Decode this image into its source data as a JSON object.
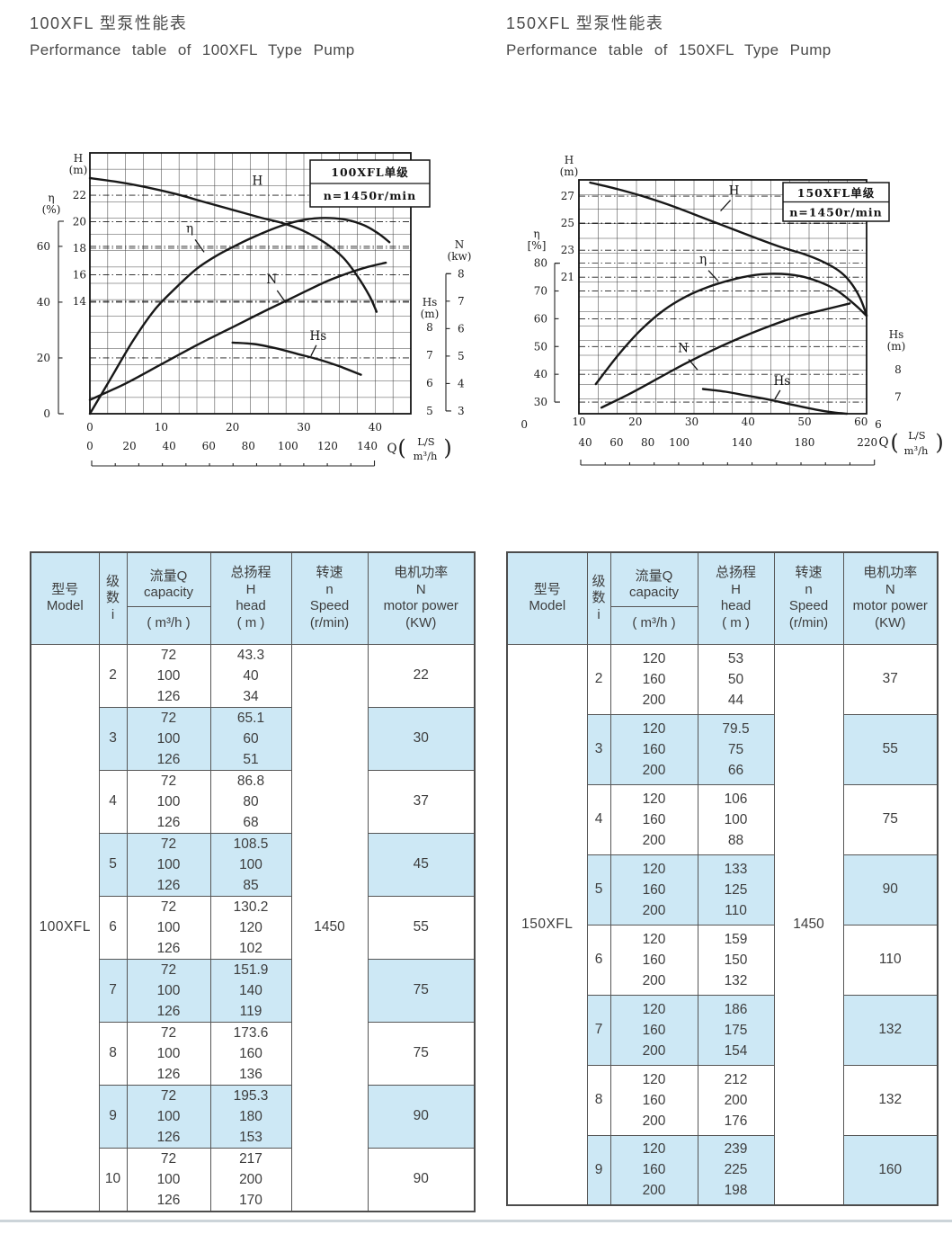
{
  "titles": {
    "left_zh": "100XFL 型泵性能表",
    "left_en": "Performance table of 100XFL Type Pump",
    "right_zh": "150XFL 型泵性能表",
    "right_en": "Performance table of 150XFL Type Pump"
  },
  "colors": {
    "stripe": "#cde8f5",
    "border": "#565656",
    "ink": "#181818",
    "text": "#3d3d3d"
  },
  "chart_data": [
    {
      "id": "100XFL",
      "type": "line",
      "box": [
        "100XFL单级",
        "n=1450r/min"
      ],
      "x": {
        "q_label": "Q",
        "unit_primary": "L/S",
        "unit_secondary": "m³/h",
        "ticks_ls": [
          0,
          10,
          20,
          30,
          40
        ],
        "ticks_m3h": [
          0,
          20,
          40,
          60,
          80,
          100,
          120,
          140
        ],
        "range_ls": [
          0,
          45
        ]
      },
      "axes": {
        "H": {
          "title": [
            "H",
            "(m)"
          ],
          "ticks": [
            22,
            20,
            18,
            16,
            14
          ],
          "range": [
            5.5,
            25.2
          ]
        },
        "eta": {
          "title": [
            "η",
            "(%)"
          ],
          "ticks": [
            60,
            40,
            20,
            0
          ],
          "range": [
            0,
            93.5
          ],
          "bracket": [
            0,
            69
          ]
        },
        "N": {
          "title": [
            "N",
            "(kw)"
          ],
          "ticks": [
            8,
            7,
            6,
            5,
            4,
            3
          ],
          "range": [
            2.9,
            12.4
          ],
          "bracket": [
            3,
            8
          ]
        },
        "Hs": {
          "title": [
            "Hs",
            "(m)"
          ],
          "ticks": [
            8,
            7,
            6,
            5
          ],
          "range": [
            4.9,
            14.25
          ]
        }
      },
      "series": [
        {
          "name": "H",
          "axis": "H",
          "label_at": [
            23.5,
            22.8
          ],
          "points": [
            [
              0,
              23.3
            ],
            [
              4,
              23.0
            ],
            [
              8,
              22.6
            ],
            [
              12,
              22.1
            ],
            [
              16,
              21.5
            ],
            [
              20,
              20.9
            ],
            [
              24,
              20.3
            ],
            [
              27,
              19.9
            ],
            [
              30,
              19.3
            ],
            [
              33,
              18.4
            ],
            [
              35.5,
              17.3
            ],
            [
              37.5,
              15.9
            ],
            [
              39.2,
              14.4
            ],
            [
              40.2,
              13.2
            ]
          ]
        },
        {
          "name": "η",
          "axis": "eta",
          "label_at": [
            14,
            65
          ],
          "points": [
            [
              0,
              0
            ],
            [
              3,
              13
            ],
            [
              6,
              26
            ],
            [
              9,
              37
            ],
            [
              12,
              45
            ],
            [
              15,
              52
            ],
            [
              18,
              57
            ],
            [
              21,
              61
            ],
            [
              24,
              64.5
            ],
            [
              27,
              67.5
            ],
            [
              30,
              69.5
            ],
            [
              33,
              70.2
            ],
            [
              36,
              69.5
            ],
            [
              38.5,
              67.5
            ],
            [
              40.5,
              64.5
            ],
            [
              42,
              61.5
            ]
          ]
        },
        {
          "name": "N",
          "axis": "N",
          "label_at": [
            25.5,
            7.65
          ],
          "points": [
            [
              0,
              3.4
            ],
            [
              5,
              4.0
            ],
            [
              10,
              4.7
            ],
            [
              15,
              5.4
            ],
            [
              20,
              6.05
            ],
            [
              25,
              6.7
            ],
            [
              29,
              7.2
            ],
            [
              33,
              7.7
            ],
            [
              36,
              8.0
            ],
            [
              39,
              8.25
            ],
            [
              41.5,
              8.4
            ]
          ]
        },
        {
          "name": "Hs",
          "axis": "Hs",
          "label_at": [
            32,
            7.55
          ],
          "points": [
            [
              20,
              7.45
            ],
            [
              23,
              7.4
            ],
            [
              26,
              7.25
            ],
            [
              29,
              7.05
            ],
            [
              32,
              6.85
            ],
            [
              35,
              6.6
            ],
            [
              38,
              6.3
            ]
          ]
        }
      ]
    },
    {
      "id": "150XFL",
      "type": "line",
      "box": [
        "150XFL单级",
        "n=1450r/min"
      ],
      "x": {
        "q_label": "Q",
        "unit_primary": "L/S",
        "unit_secondary": "m³/h",
        "ticks_ls": [
          10,
          20,
          30,
          40,
          50,
          60
        ],
        "ticks_m3h": [
          40,
          60,
          80,
          100,
          140,
          180,
          220
        ],
        "range_ls": [
          10,
          61
        ]
      },
      "axes": {
        "H": {
          "title": [
            "H",
            "(m)"
          ],
          "ticks": [
            27,
            25,
            23,
            21
          ],
          "range": [
            10.9,
            28.2
          ]
        },
        "eta": {
          "title": [
            "η",
            "[%]"
          ],
          "ticks": [
            80,
            70,
            60,
            50,
            40,
            30,
            0
          ],
          "range": [
            25.8,
            110
          ],
          "bracket": [
            30,
            80
          ]
        },
        "Hs": {
          "title": [
            "Hs",
            "(m)"
          ],
          "ticks": [
            8,
            7,
            6
          ],
          "range": [
            6.4,
            14.9
          ]
        }
      },
      "series": [
        {
          "name": "H",
          "axis": "H",
          "label_at": [
            37.5,
            27.1
          ],
          "points": [
            [
              12,
              28.0
            ],
            [
              17,
              27.5
            ],
            [
              22,
              26.9
            ],
            [
              27,
              26.2
            ],
            [
              32,
              25.4
            ],
            [
              37,
              24.6
            ],
            [
              42,
              23.8
            ],
            [
              46,
              23.2
            ],
            [
              50,
              22.7
            ],
            [
              53,
              22.2
            ],
            [
              56,
              21.5
            ],
            [
              58,
              20.7
            ],
            [
              59.8,
              19.5
            ],
            [
              61,
              18.2
            ]
          ]
        },
        {
          "name": "η",
          "axis": "eta",
          "label_at": [
            32,
            80
          ],
          "points": [
            [
              13,
              36.5
            ],
            [
              17,
              47
            ],
            [
              21,
              56
            ],
            [
              25,
              63
            ],
            [
              29,
              68
            ],
            [
              33,
              71.5
            ],
            [
              37,
              74
            ],
            [
              41,
              75.7
            ],
            [
              44,
              76.2
            ],
            [
              47,
              76
            ],
            [
              50,
              75
            ],
            [
              53,
              73
            ],
            [
              55.5,
              70.5
            ],
            [
              57.5,
              67.5
            ],
            [
              59.5,
              64
            ],
            [
              61,
              61
            ]
          ]
        },
        {
          "name": "N",
          "axis": "eta",
          "note": "N axis unlabeled in source chart",
          "label_at": [
            28.5,
            48
          ],
          "points": [
            [
              14,
              28
            ],
            [
              19,
              33
            ],
            [
              24,
              38.5
            ],
            [
              29,
              44
            ],
            [
              34,
              49
            ],
            [
              39,
              53.5
            ],
            [
              44,
              57.5
            ],
            [
              49,
              61
            ],
            [
              53,
              63
            ],
            [
              56,
              64.5
            ],
            [
              58,
              65.5
            ]
          ]
        },
        {
          "name": "Hs",
          "axis": "Hs",
          "label_at": [
            46,
            7.45
          ],
          "points": [
            [
              32,
              7.3
            ],
            [
              36,
              7.2
            ],
            [
              40,
              7.05
            ],
            [
              44,
              6.9
            ],
            [
              48,
              6.72
            ],
            [
              52,
              6.55
            ],
            [
              55,
              6.45
            ],
            [
              57.5,
              6.4
            ]
          ]
        }
      ]
    }
  ],
  "tables": [
    {
      "model": "100XFL",
      "speed": "1450",
      "headers": [
        {
          "lines": [
            "型号",
            "Model"
          ]
        },
        {
          "lines": [
            "级",
            "数",
            "i"
          ]
        },
        {
          "split": {
            "top": [
              "流量Q",
              "capacity"
            ],
            "bottom": "( m³/h )"
          }
        },
        {
          "lines": [
            "总扬程",
            "H",
            "head",
            "( m )"
          ]
        },
        {
          "lines": [
            "转速",
            "n",
            "Speed",
            "(r/min)"
          ]
        },
        {
          "lines": [
            "电机功率",
            "N",
            "motor power",
            "(KW)"
          ]
        }
      ],
      "rows": [
        {
          "i": "2",
          "q": [
            "72",
            "100",
            "126"
          ],
          "h": [
            "43.3",
            "40",
            "34"
          ],
          "n": "22"
        },
        {
          "i": "3",
          "q": [
            "72",
            "100",
            "126"
          ],
          "h": [
            "65.1",
            "60",
            "51"
          ],
          "n": "30"
        },
        {
          "i": "4",
          "q": [
            "72",
            "100",
            "126"
          ],
          "h": [
            "86.8",
            "80",
            "68"
          ],
          "n": "37"
        },
        {
          "i": "5",
          "q": [
            "72",
            "100",
            "126"
          ],
          "h": [
            "108.5",
            "100",
            "85"
          ],
          "n": "45"
        },
        {
          "i": "6",
          "q": [
            "72",
            "100",
            "126"
          ],
          "h": [
            "130.2",
            "120",
            "102"
          ],
          "n": "55"
        },
        {
          "i": "7",
          "q": [
            "72",
            "100",
            "126"
          ],
          "h": [
            "151.9",
            "140",
            "119"
          ],
          "n": "75"
        },
        {
          "i": "8",
          "q": [
            "72",
            "100",
            "126"
          ],
          "h": [
            "173.6",
            "160",
            "136"
          ],
          "n": "75"
        },
        {
          "i": "9",
          "q": [
            "72",
            "100",
            "126"
          ],
          "h": [
            "195.3",
            "180",
            "153"
          ],
          "n": "90"
        },
        {
          "i": "10",
          "q": [
            "72",
            "100",
            "126"
          ],
          "h": [
            "217",
            "200",
            "170"
          ],
          "n": "90"
        }
      ]
    },
    {
      "model": "150XFL",
      "speed": "1450",
      "headers": [
        {
          "lines": [
            "型号",
            "Model"
          ]
        },
        {
          "lines": [
            "级",
            "数",
            "i"
          ]
        },
        {
          "split": {
            "top": [
              "流量Q",
              "capacity"
            ],
            "bottom": "( m³/h )"
          }
        },
        {
          "lines": [
            "总扬程",
            "H",
            "head",
            "( m )"
          ]
        },
        {
          "lines": [
            "转速",
            "n",
            "Speed",
            "(r/min)"
          ]
        },
        {
          "lines": [
            "电机功率",
            "N",
            "motor power",
            "(KW)"
          ]
        }
      ],
      "rows": [
        {
          "i": "2",
          "q": [
            "120",
            "160",
            "200"
          ],
          "h": [
            "53",
            "50",
            "44"
          ],
          "n": "37"
        },
        {
          "i": "3",
          "q": [
            "120",
            "160",
            "200"
          ],
          "h": [
            "79.5",
            "75",
            "66"
          ],
          "n": "55"
        },
        {
          "i": "4",
          "q": [
            "120",
            "160",
            "200"
          ],
          "h": [
            "106",
            "100",
            "88"
          ],
          "n": "75"
        },
        {
          "i": "5",
          "q": [
            "120",
            "160",
            "200"
          ],
          "h": [
            "133",
            "125",
            "110"
          ],
          "n": "90"
        },
        {
          "i": "6",
          "q": [
            "120",
            "160",
            "200"
          ],
          "h": [
            "159",
            "150",
            "132"
          ],
          "n": "110"
        },
        {
          "i": "7",
          "q": [
            "120",
            "160",
            "200"
          ],
          "h": [
            "186",
            "175",
            "154"
          ],
          "n": "132"
        },
        {
          "i": "8",
          "q": [
            "120",
            "160",
            "200"
          ],
          "h": [
            "212",
            "200",
            "176"
          ],
          "n": "132"
        },
        {
          "i": "9",
          "q": [
            "120",
            "160",
            "200"
          ],
          "h": [
            "239",
            "225",
            "198"
          ],
          "n": "160"
        }
      ]
    }
  ]
}
